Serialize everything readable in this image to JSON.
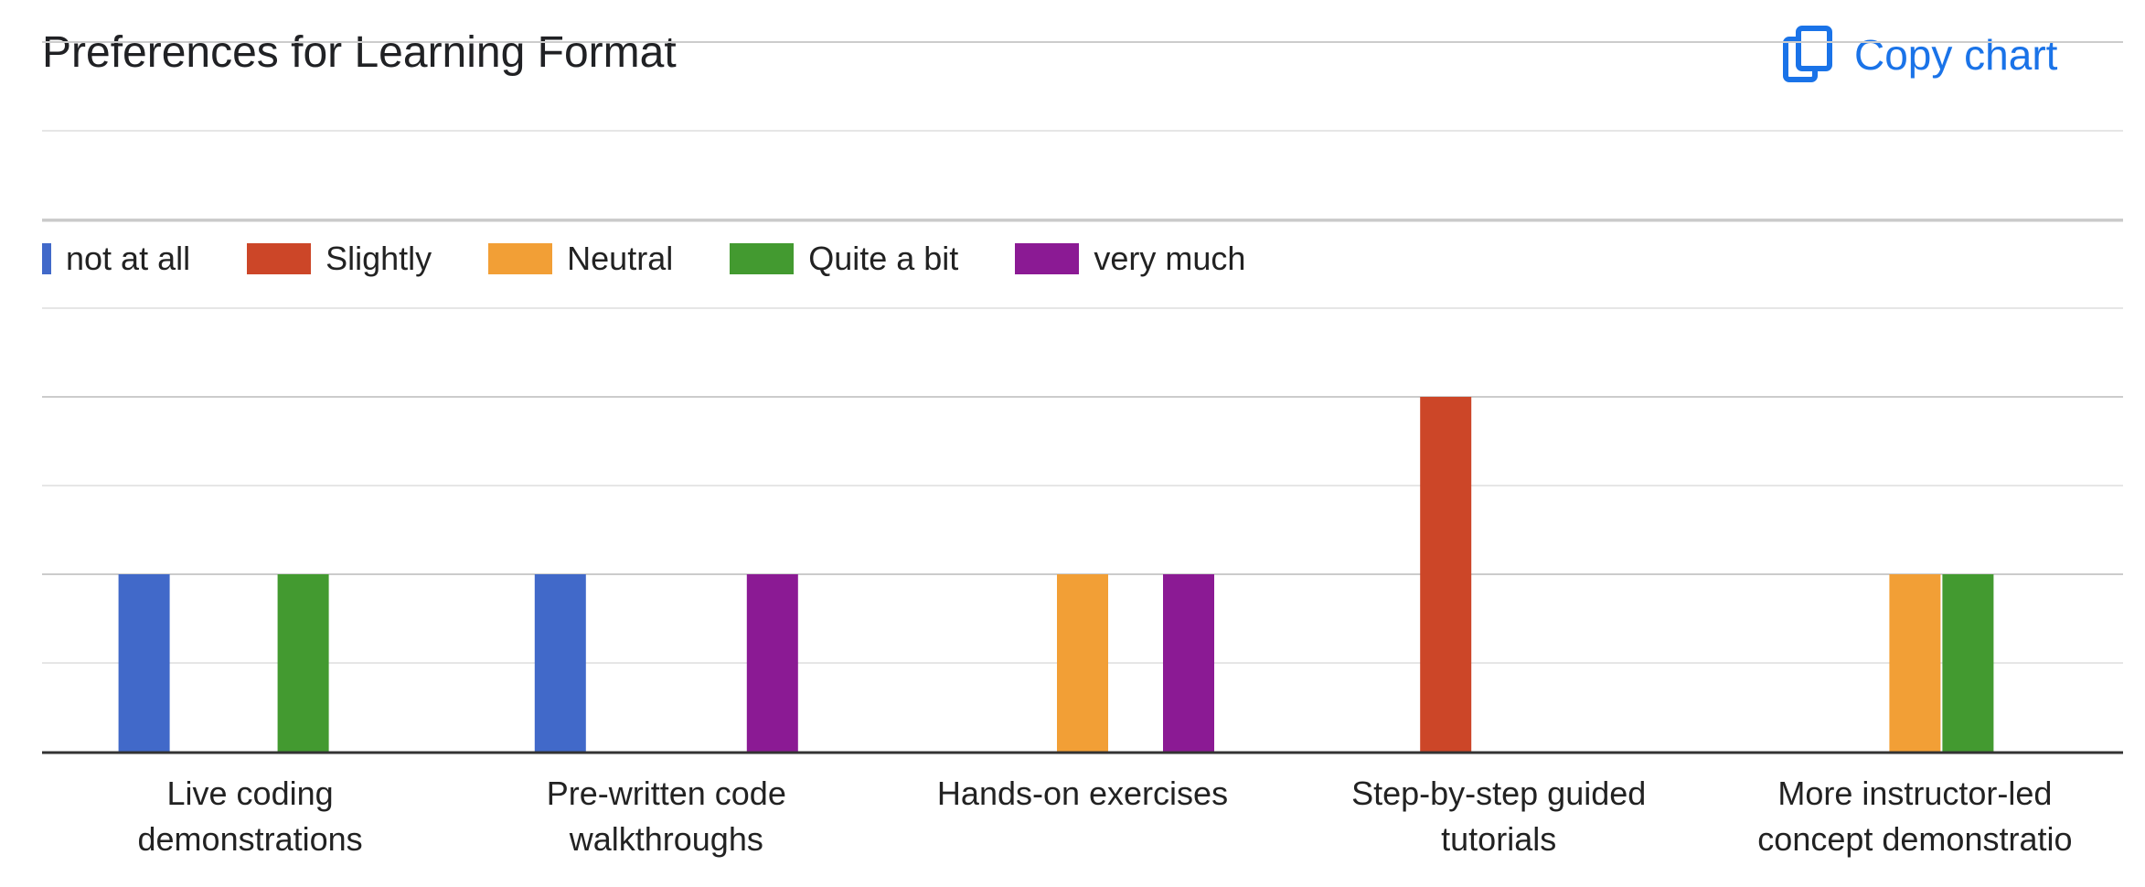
{
  "header": {
    "title": "Preferences for Learning Format",
    "copy_label": "Copy chart",
    "accent": "#1a73e8"
  },
  "chart_data": {
    "type": "bar",
    "title": "Preferences for Learning Format",
    "xlabel": "",
    "ylabel": "",
    "categories": [
      [
        "Live coding",
        "demonstrations"
      ],
      [
        "Pre-written code",
        "walkthroughs"
      ],
      [
        "Hands-on exercises"
      ],
      [
        "Step-by-step guided",
        "tutorials"
      ],
      [
        "More instructor-led",
        "concept demonstratio"
      ]
    ],
    "series": [
      {
        "name": "not at all",
        "color": "#4169c9",
        "values": [
          1,
          1,
          0,
          0,
          0
        ]
      },
      {
        "name": "Slightly",
        "color": "#cc4628",
        "values": [
          0,
          0,
          0,
          2,
          0
        ]
      },
      {
        "name": "Neutral",
        "color": "#f29f36",
        "values": [
          0,
          0,
          1,
          0,
          1
        ]
      },
      {
        "name": "Quite a bit",
        "color": "#439a30",
        "values": [
          1,
          0,
          0,
          0,
          1
        ]
      },
      {
        "name": "very much",
        "color": "#8b1a94",
        "values": [
          0,
          1,
          1,
          0,
          0
        ]
      }
    ],
    "ylim": [
      0,
      4
    ],
    "grid": true,
    "legend_position": "top-left"
  }
}
